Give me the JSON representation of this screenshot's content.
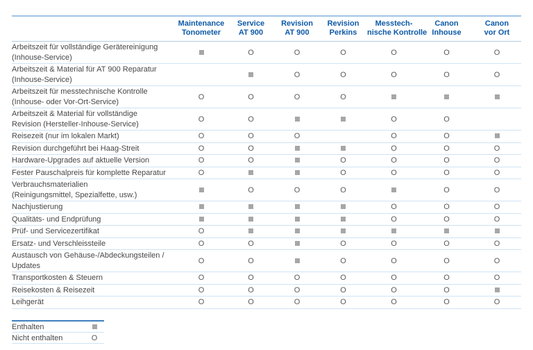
{
  "colors": {
    "header_blue": "#0e5aa7",
    "table_top_border": "#9fc5e6",
    "header_bottom_border": "#b3cbdd",
    "row_divider": "#cfe3f4",
    "legend_top_border": "#3f80bd",
    "included_square": "#a6a6a6",
    "body_text": "#474747",
    "not_included_mark": "#5a5a5a"
  },
  "symbols": {
    "included": "square",
    "not_included": "O"
  },
  "table": {
    "columns": [
      {
        "lines": [
          "Maintenance",
          "Tonometer"
        ]
      },
      {
        "lines": [
          "Service",
          "AT 900"
        ]
      },
      {
        "lines": [
          "Revision",
          "AT 900"
        ]
      },
      {
        "lines": [
          "Revision",
          "Perkins"
        ]
      },
      {
        "lines": [
          "Messtech-",
          "nische Kontrolle"
        ]
      },
      {
        "lines": [
          "Canon",
          "Inhouse"
        ]
      },
      {
        "lines": [
          "Canon",
          "vor Ort"
        ]
      }
    ],
    "rows": [
      {
        "label": [
          "Arbeitszeit für vollständige Gerätereinigung",
          "(Inhouse-Service)"
        ],
        "values": [
          "S",
          "O",
          "O",
          "O",
          "O",
          "O",
          "O"
        ]
      },
      {
        "label": [
          "Arbeitszeit & Material für AT 900 Reparatur",
          "(Inhouse-Service)"
        ],
        "values": [
          "",
          "S",
          "O",
          "O",
          "O",
          "O",
          "O"
        ]
      },
      {
        "label": [
          "Arbeitszeit für messtechnische Kontrolle",
          "(Inhouse- oder Vor-Ort-Service)"
        ],
        "values": [
          "O",
          "O",
          "O",
          "O",
          "S",
          "S",
          "S"
        ]
      },
      {
        "label": [
          "Arbeitszeit & Material für vollständige",
          "Revision (Hersteller-Inhouse-Service)"
        ],
        "values": [
          "O",
          "O",
          "S",
          "S",
          "O",
          "O",
          ""
        ]
      },
      {
        "label": [
          "Reisezeit (nur im lokalen Markt)"
        ],
        "values": [
          "O",
          "O",
          "O",
          "",
          "O",
          "O",
          "S"
        ]
      },
      {
        "label": [
          "Revision durchgeführt bei Haag-Streit"
        ],
        "values": [
          "O",
          "O",
          "S",
          "S",
          "O",
          "O",
          "O"
        ]
      },
      {
        "label": [
          "Hardware-Upgrades auf aktuelle Version"
        ],
        "values": [
          "O",
          "O",
          "S",
          "O",
          "O",
          "O",
          "O"
        ]
      },
      {
        "label": [
          "Fester Pauschalpreis für komplette Reparatur"
        ],
        "values": [
          "O",
          "S",
          "S",
          "O",
          "O",
          "O",
          "O"
        ]
      },
      {
        "label": [
          "Verbrauchsmaterialien",
          "(Reinigungsmittel, Spezialfette, usw.)"
        ],
        "values": [
          "S",
          "O",
          "O",
          "O",
          "S",
          "O",
          "O"
        ]
      },
      {
        "label": [
          "Nachjustierung"
        ],
        "values": [
          "S",
          "S",
          "S",
          "S",
          "O",
          "O",
          "O"
        ]
      },
      {
        "label": [
          "Qualitäts- und Endprüfung"
        ],
        "values": [
          "S",
          "S",
          "S",
          "S",
          "O",
          "O",
          "O"
        ]
      },
      {
        "label": [
          "Prüf- und Servicezertifikat"
        ],
        "values": [
          "O",
          "S",
          "S",
          "S",
          "S",
          "S",
          "S"
        ]
      },
      {
        "label": [
          "Ersatz- und Verschleissteile"
        ],
        "values": [
          "O",
          "O",
          "S",
          "O",
          "O",
          "O",
          "O"
        ]
      },
      {
        "label": [
          "Austausch von Gehäuse-/Abdeckungsteilen /",
          "Updates"
        ],
        "values": [
          "O",
          "O",
          "S",
          "O",
          "O",
          "O",
          "O"
        ]
      },
      {
        "label": [
          "Transportkosten & Steuern"
        ],
        "values": [
          "O",
          "O",
          "O",
          "O",
          "O",
          "O",
          "O"
        ]
      },
      {
        "label": [
          "Reisekosten & Reisezeit"
        ],
        "values": [
          "O",
          "O",
          "O",
          "O",
          "O",
          "O",
          "S"
        ]
      },
      {
        "label": [
          "Leihgerät"
        ],
        "values": [
          "O",
          "O",
          "O",
          "O",
          "O",
          "O",
          "O"
        ]
      }
    ]
  },
  "legend": {
    "items": [
      {
        "label": "Enthalten",
        "mark": "S"
      },
      {
        "label": "Nicht enthalten",
        "mark": "O"
      }
    ]
  }
}
